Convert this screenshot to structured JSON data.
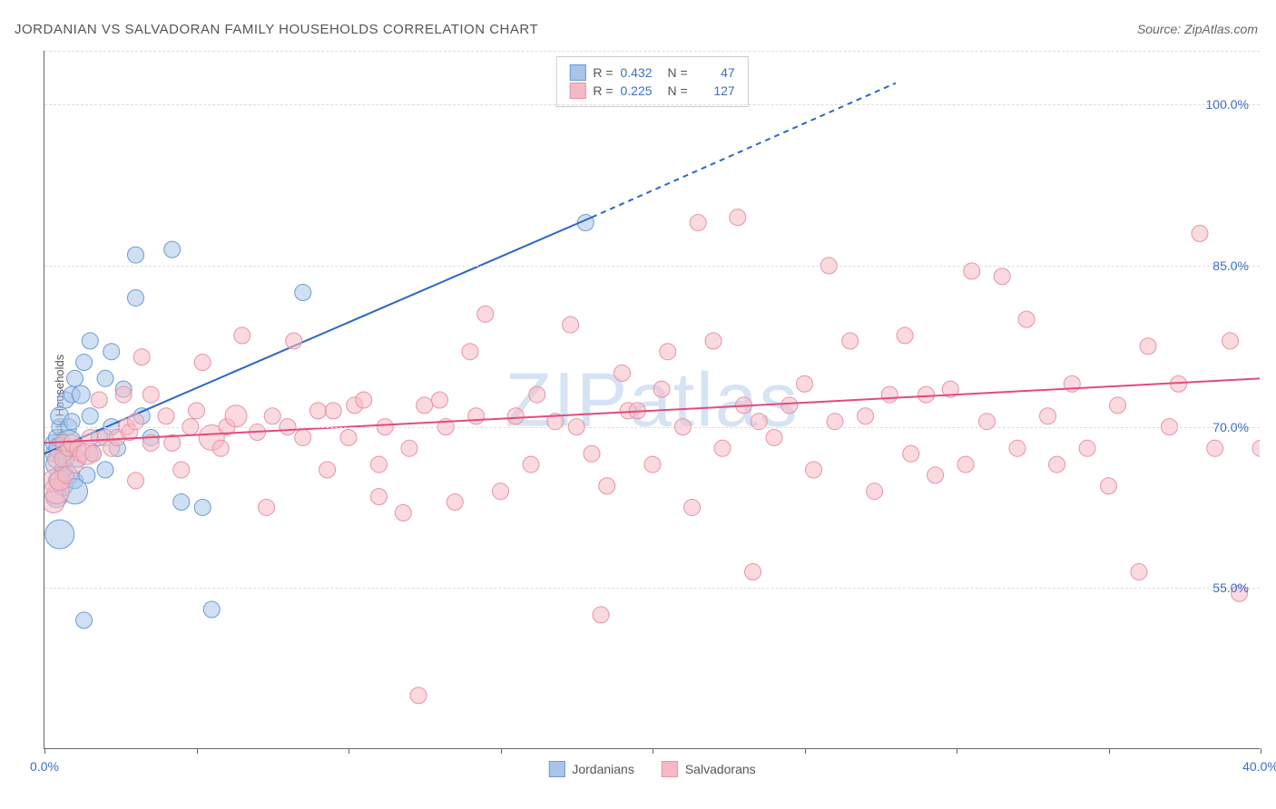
{
  "title": "JORDANIAN VS SALVADORAN FAMILY HOUSEHOLDS CORRELATION CHART",
  "source": "Source: ZipAtlas.com",
  "ylabel": "Family Households",
  "watermark_prefix": "ZIP",
  "watermark_suffix": "atlas",
  "chart": {
    "type": "scatter",
    "xlim": [
      0,
      40
    ],
    "ylim": [
      40,
      105
    ],
    "xtick_values": [
      0,
      5,
      10,
      15,
      20,
      25,
      30,
      35,
      40
    ],
    "xtick_labels": [
      "0.0%",
      "",
      "",
      "",
      "",
      "",
      "",
      "",
      "40.0%"
    ],
    "ytick_values": [
      55,
      70,
      85,
      100
    ],
    "ytick_labels": [
      "55.0%",
      "70.0%",
      "85.0%",
      "100.0%"
    ],
    "extra_gridline": 105,
    "background_color": "#ffffff",
    "grid_color": "#dddddd",
    "axis_color": "#666666",
    "label_color": "#3b6fc9",
    "series": [
      {
        "name": "Jordanians",
        "fill": "#a9c4e8",
        "stroke": "#6a9bd8",
        "fill_opacity": 0.55,
        "line_color": "#2b67c7",
        "line_width": 2,
        "R": "0.432",
        "N": "47",
        "trend": {
          "x1": 0,
          "y1": 67.5,
          "x2": 18,
          "y2": 89.5,
          "x_solid_end": 18
        },
        "trend_dashed": {
          "x1": 18,
          "y1": 89.5,
          "x2": 28,
          "y2": 102
        },
        "points": [
          [
            0.3,
            67.5,
            9
          ],
          [
            0.3,
            68.5,
            9
          ],
          [
            0.4,
            66.5,
            12
          ],
          [
            0.4,
            63.5,
            12
          ],
          [
            0.4,
            65,
            9
          ],
          [
            0.4,
            69,
            9
          ],
          [
            0.5,
            70,
            9
          ],
          [
            0.5,
            68,
            12
          ],
          [
            0.5,
            60,
            16
          ],
          [
            0.5,
            71,
            10
          ],
          [
            0.6,
            66,
            9
          ],
          [
            0.6,
            64.5,
            11
          ],
          [
            0.7,
            72.5,
            9
          ],
          [
            0.7,
            67,
            9
          ],
          [
            0.8,
            70,
            9
          ],
          [
            0.8,
            65.5,
            10
          ],
          [
            0.8,
            68.5,
            14
          ],
          [
            0.9,
            73,
            9
          ],
          [
            0.9,
            70.5,
            9
          ],
          [
            1.0,
            65,
            9
          ],
          [
            1.0,
            74.5,
            9
          ],
          [
            1.0,
            64,
            14
          ],
          [
            1.1,
            67,
            9
          ],
          [
            1.2,
            73,
            10
          ],
          [
            1.3,
            76,
            9
          ],
          [
            1.3,
            52,
            9
          ],
          [
            1.4,
            65.5,
            9
          ],
          [
            1.5,
            71,
            9
          ],
          [
            1.5,
            78,
            9
          ],
          [
            1.6,
            67.5,
            9
          ],
          [
            1.8,
            69,
            9
          ],
          [
            2.0,
            74.5,
            9
          ],
          [
            2.0,
            66,
            9
          ],
          [
            2.2,
            77,
            9
          ],
          [
            2.2,
            70,
            9
          ],
          [
            2.4,
            68,
            9
          ],
          [
            2.6,
            73.5,
            9
          ],
          [
            3.0,
            86,
            9
          ],
          [
            3.0,
            82,
            9
          ],
          [
            3.2,
            71,
            9
          ],
          [
            3.5,
            69,
            9
          ],
          [
            4.2,
            86.5,
            9
          ],
          [
            4.5,
            63,
            9
          ],
          [
            5.2,
            62.5,
            9
          ],
          [
            5.5,
            53,
            9
          ],
          [
            8.5,
            82.5,
            9
          ],
          [
            17.8,
            89,
            9
          ]
        ]
      },
      {
        "name": "Salvadorans",
        "fill": "#f5b9c5",
        "stroke": "#e793a6",
        "fill_opacity": 0.55,
        "line_color": "#e44a7b",
        "line_width": 2,
        "R": "0.225",
        "N": "127",
        "trend": {
          "x1": 0,
          "y1": 68.5,
          "x2": 40,
          "y2": 74.5,
          "x_solid_end": 40
        },
        "points": [
          [
            0.3,
            63,
            12
          ],
          [
            0.3,
            65,
            12
          ],
          [
            0.4,
            64,
            14
          ],
          [
            0.4,
            67,
            10
          ],
          [
            0.5,
            65,
            11
          ],
          [
            0.6,
            67,
            9
          ],
          [
            0.6,
            68.5,
            9
          ],
          [
            0.7,
            65.5,
            9
          ],
          [
            0.8,
            68,
            9
          ],
          [
            0.9,
            68.5,
            9
          ],
          [
            1.0,
            66.5,
            9
          ],
          [
            1.1,
            68,
            9
          ],
          [
            1.2,
            67.5,
            9
          ],
          [
            1.4,
            67.5,
            12
          ],
          [
            1.5,
            69,
            9
          ],
          [
            1.6,
            67.5,
            9
          ],
          [
            1.8,
            72.5,
            9
          ],
          [
            2.0,
            69,
            9
          ],
          [
            2.2,
            68,
            9
          ],
          [
            2.4,
            69,
            9
          ],
          [
            2.6,
            73,
            9
          ],
          [
            2.7,
            70,
            9
          ],
          [
            2.8,
            69.5,
            9
          ],
          [
            3.0,
            65,
            9
          ],
          [
            3.0,
            70.5,
            9
          ],
          [
            3.2,
            76.5,
            9
          ],
          [
            3.5,
            73,
            9
          ],
          [
            3.5,
            68.5,
            9
          ],
          [
            4.0,
            71,
            9
          ],
          [
            4.2,
            68.5,
            9
          ],
          [
            4.5,
            66,
            9
          ],
          [
            4.8,
            70,
            9
          ],
          [
            5.0,
            71.5,
            9
          ],
          [
            5.2,
            76,
            9
          ],
          [
            5.5,
            69,
            14
          ],
          [
            5.8,
            68,
            9
          ],
          [
            6.0,
            70,
            9
          ],
          [
            6.3,
            71,
            12
          ],
          [
            6.5,
            78.5,
            9
          ],
          [
            7.0,
            69.5,
            9
          ],
          [
            7.3,
            62.5,
            9
          ],
          [
            7.5,
            71,
            9
          ],
          [
            8.0,
            70,
            9
          ],
          [
            8.2,
            78,
            9
          ],
          [
            8.5,
            69,
            9
          ],
          [
            9.0,
            71.5,
            9
          ],
          [
            9.3,
            66,
            9
          ],
          [
            9.5,
            71.5,
            9
          ],
          [
            10.0,
            69,
            9
          ],
          [
            10.2,
            72,
            9
          ],
          [
            10.5,
            72.5,
            9
          ],
          [
            11.0,
            66.5,
            9
          ],
          [
            11.0,
            63.5,
            9
          ],
          [
            11.2,
            70,
            9
          ],
          [
            11.8,
            62,
            9
          ],
          [
            12.0,
            68,
            9
          ],
          [
            12.3,
            45,
            9
          ],
          [
            12.5,
            72,
            9
          ],
          [
            13.0,
            72.5,
            9
          ],
          [
            13.2,
            70,
            9
          ],
          [
            13.5,
            63,
            9
          ],
          [
            14.0,
            77,
            9
          ],
          [
            14.2,
            71,
            9
          ],
          [
            14.5,
            80.5,
            9
          ],
          [
            15.0,
            64,
            9
          ],
          [
            15.5,
            71,
            9
          ],
          [
            16.0,
            66.5,
            9
          ],
          [
            16.2,
            73,
            9
          ],
          [
            16.8,
            70.5,
            9
          ],
          [
            17.3,
            79.5,
            9
          ],
          [
            17.5,
            70,
            9
          ],
          [
            18.0,
            67.5,
            9
          ],
          [
            18.3,
            52.5,
            9
          ],
          [
            18.5,
            64.5,
            9
          ],
          [
            19.0,
            75,
            9
          ],
          [
            19.2,
            71.5,
            9
          ],
          [
            19.5,
            71.5,
            9
          ],
          [
            20.0,
            66.5,
            9
          ],
          [
            20.3,
            73.5,
            9
          ],
          [
            20.5,
            77,
            9
          ],
          [
            21.0,
            70,
            9
          ],
          [
            21.3,
            62.5,
            9
          ],
          [
            21.5,
            89,
            9
          ],
          [
            22.0,
            78,
            9
          ],
          [
            22.3,
            68,
            9
          ],
          [
            22.8,
            89.5,
            9
          ],
          [
            23.0,
            72,
            9
          ],
          [
            23.3,
            56.5,
            9
          ],
          [
            23.5,
            70.5,
            9
          ],
          [
            24.0,
            69,
            9
          ],
          [
            24.5,
            72,
            9
          ],
          [
            25.0,
            74,
            9
          ],
          [
            25.3,
            66,
            9
          ],
          [
            25.8,
            85,
            9
          ],
          [
            26.0,
            70.5,
            9
          ],
          [
            26.5,
            78,
            9
          ],
          [
            27.0,
            71,
            9
          ],
          [
            27.3,
            64,
            9
          ],
          [
            27.8,
            73,
            9
          ],
          [
            28.3,
            78.5,
            9
          ],
          [
            28.5,
            67.5,
            9
          ],
          [
            29.0,
            73,
            9
          ],
          [
            29.3,
            65.5,
            9
          ],
          [
            29.8,
            73.5,
            9
          ],
          [
            30.3,
            66.5,
            9
          ],
          [
            30.5,
            84.5,
            9
          ],
          [
            31.0,
            70.5,
            9
          ],
          [
            31.5,
            84,
            9
          ],
          [
            32.0,
            68,
            9
          ],
          [
            32.3,
            80,
            9
          ],
          [
            33.0,
            71,
            9
          ],
          [
            33.3,
            66.5,
            9
          ],
          [
            33.8,
            74,
            9
          ],
          [
            34.3,
            68,
            9
          ],
          [
            35.0,
            64.5,
            9
          ],
          [
            35.3,
            72,
            9
          ],
          [
            36.0,
            56.5,
            9
          ],
          [
            36.3,
            77.5,
            9
          ],
          [
            37.0,
            70,
            9
          ],
          [
            37.3,
            74,
            9
          ],
          [
            38.0,
            88,
            9
          ],
          [
            38.5,
            68,
            9
          ],
          [
            39.0,
            78,
            9
          ],
          [
            39.3,
            54.5,
            9
          ],
          [
            40.0,
            68,
            9
          ]
        ]
      }
    ]
  },
  "legend_bottom": [
    {
      "label": "Jordanians",
      "fill": "#a9c4e8",
      "stroke": "#6a9bd8"
    },
    {
      "label": "Salvadorans",
      "fill": "#f5b9c5",
      "stroke": "#e793a6"
    }
  ]
}
